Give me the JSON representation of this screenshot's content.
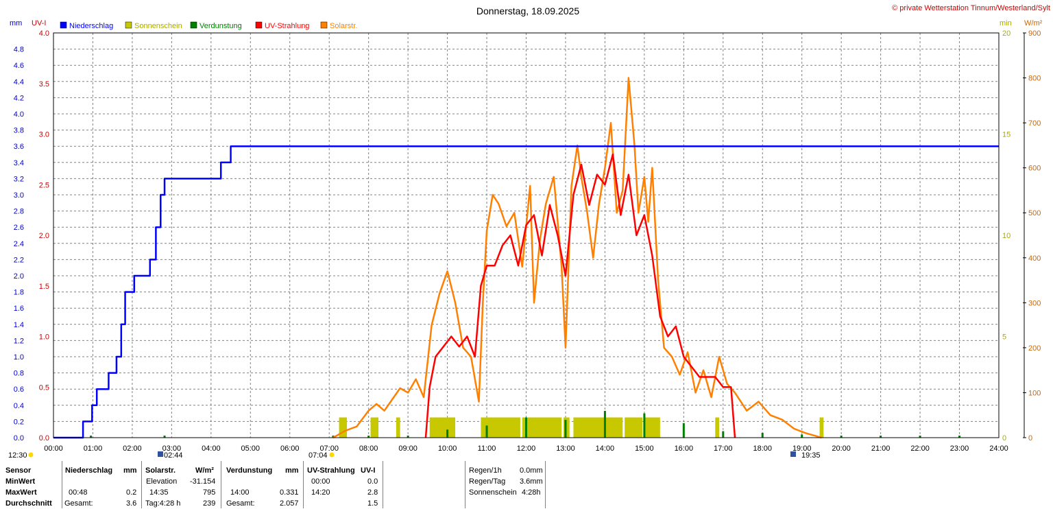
{
  "header": {
    "title": "Donnerstag, 18.09.2025",
    "credit": "© private Wetterstation Tinnum/Westerland/Sylt"
  },
  "axes": {
    "left_unit_mm": "mm",
    "left_unit_uv": "UV-I",
    "right_unit_min": "min",
    "right_unit_wm2": "W/m²",
    "x_ticks": [
      "00:00",
      "01:00",
      "02:00",
      "03:00",
      "04:00",
      "05:00",
      "06:00",
      "07:00",
      "08:00",
      "09:00",
      "10:00",
      "11:00",
      "12:00",
      "13:00",
      "14:00",
      "15:00",
      "16:00",
      "17:00",
      "18:00",
      "19:00",
      "20:00",
      "21:00",
      "22:00",
      "23:00",
      "24:00"
    ],
    "mm_ticks": [
      "0.0",
      "0.2",
      "0.4",
      "0.6",
      "0.8",
      "1.0",
      "1.2",
      "1.4",
      "1.6",
      "1.8",
      "2.0",
      "2.2",
      "2.4",
      "2.6",
      "2.8",
      "3.0",
      "3.2",
      "3.4",
      "3.6",
      "3.8",
      "4.0",
      "4.2",
      "4.4",
      "4.6",
      "4.8"
    ],
    "uv_ticks": [
      "0.0",
      "0.5",
      "1.0",
      "1.5",
      "2.0",
      "2.5",
      "3.0",
      "3.5",
      "4.0"
    ],
    "min_ticks": [
      "0",
      "5",
      "10",
      "15",
      "20"
    ],
    "wm2_ticks": [
      "0",
      "100",
      "200",
      "300",
      "400",
      "500",
      "600",
      "700",
      "800",
      "900"
    ]
  },
  "legend": [
    {
      "label": "Niederschlag",
      "color": "#0000ff"
    },
    {
      "label": "Sonnenschein",
      "color": "#c8c800"
    },
    {
      "label": "Verdunstung",
      "color": "#008000"
    },
    {
      "label": "UV-Strahlung",
      "color": "#ff0000"
    },
    {
      "label": "Solarstr.",
      "color": "#ff8000"
    }
  ],
  "markers": {
    "moon": "12:30",
    "moonrise": "02:44",
    "sunrise": "07:04",
    "sunset": "19:35"
  },
  "chart_data": {
    "type": "line",
    "xlim": [
      0,
      24
    ],
    "series": [
      {
        "name": "Niederschlag",
        "axis": "mm",
        "ylim": [
          0,
          5.0
        ],
        "step": true,
        "x": [
          0,
          0.75,
          0.98,
          1.1,
          1.4,
          1.6,
          1.72,
          1.82,
          2.05,
          2.45,
          2.6,
          2.72,
          2.82,
          4.25,
          4.5,
          24
        ],
        "y": [
          0,
          0.2,
          0.4,
          0.6,
          0.8,
          1.0,
          1.4,
          1.8,
          2.0,
          2.2,
          2.6,
          3.0,
          3.2,
          3.4,
          3.6,
          3.6
        ]
      },
      {
        "name": "UV-Strahlung",
        "axis": "uv",
        "ylim": [
          0,
          4.0
        ],
        "x": [
          9.45,
          9.55,
          9.7,
          9.9,
          10.1,
          10.3,
          10.5,
          10.7,
          10.85,
          11.0,
          11.2,
          11.4,
          11.6,
          11.8,
          12.0,
          12.2,
          12.4,
          12.6,
          12.8,
          13.0,
          13.2,
          13.4,
          13.6,
          13.8,
          14.0,
          14.2,
          14.4,
          14.6,
          14.8,
          15.0,
          15.2,
          15.4,
          15.6,
          15.8,
          16.0,
          16.2,
          16.4,
          16.6,
          16.8,
          17.0,
          17.2,
          17.3
        ],
        "y": [
          0,
          0.5,
          0.8,
          0.9,
          1.0,
          0.9,
          1.0,
          0.8,
          1.5,
          1.7,
          1.7,
          1.9,
          2.0,
          1.7,
          2.1,
          2.2,
          1.8,
          2.3,
          2.0,
          1.6,
          2.4,
          2.7,
          2.3,
          2.6,
          2.5,
          2.8,
          2.2,
          2.6,
          2.0,
          2.2,
          1.8,
          1.2,
          1.0,
          1.1,
          0.8,
          0.7,
          0.6,
          0.6,
          0.6,
          0.5,
          0.5,
          0
        ]
      },
      {
        "name": "Solarstr.",
        "axis": "wm2",
        "ylim": [
          0,
          900
        ],
        "x": [
          7.1,
          7.4,
          7.7,
          8.0,
          8.2,
          8.4,
          8.6,
          8.8,
          9.0,
          9.2,
          9.4,
          9.6,
          9.8,
          10.0,
          10.2,
          10.4,
          10.6,
          10.8,
          10.9,
          11.0,
          11.15,
          11.3,
          11.5,
          11.7,
          11.9,
          12.1,
          12.2,
          12.35,
          12.5,
          12.7,
          12.9,
          13.0,
          13.15,
          13.3,
          13.4,
          13.55,
          13.7,
          13.85,
          14.0,
          14.15,
          14.3,
          14.45,
          14.6,
          14.75,
          14.85,
          15.0,
          15.1,
          15.2,
          15.35,
          15.5,
          15.7,
          15.9,
          16.1,
          16.3,
          16.5,
          16.7,
          16.9,
          17.1,
          17.3,
          17.6,
          17.9,
          18.2,
          18.5,
          18.8,
          19.1,
          19.3,
          19.5
        ],
        "y": [
          0,
          15,
          25,
          60,
          75,
          60,
          85,
          110,
          100,
          130,
          90,
          250,
          320,
          370,
          300,
          200,
          180,
          80,
          300,
          460,
          540,
          520,
          470,
          500,
          380,
          560,
          300,
          440,
          520,
          580,
          380,
          200,
          560,
          650,
          580,
          500,
          400,
          520,
          600,
          700,
          500,
          550,
          800,
          650,
          500,
          580,
          480,
          600,
          350,
          200,
          180,
          140,
          190,
          100,
          150,
          90,
          180,
          120,
          100,
          60,
          80,
          50,
          40,
          20,
          10,
          5,
          0
        ]
      },
      {
        "name": "Sonnenschein",
        "axis": "min",
        "ylim": [
          0,
          20
        ],
        "bars": [
          [
            7.25,
            7.45,
            1
          ],
          [
            8.05,
            8.25,
            1
          ],
          [
            8.7,
            8.8,
            1
          ],
          [
            9.55,
            10.2,
            1
          ],
          [
            10.85,
            11.85,
            1
          ],
          [
            11.9,
            12.2,
            1
          ],
          [
            12.2,
            12.9,
            1
          ],
          [
            12.95,
            13.1,
            1
          ],
          [
            13.2,
            14.45,
            1
          ],
          [
            14.5,
            14.95,
            1
          ],
          [
            15.0,
            15.4,
            1
          ],
          [
            16.8,
            16.9,
            1
          ],
          [
            19.45,
            19.55,
            1
          ]
        ]
      },
      {
        "name": "Verdunstung",
        "axis": "mm",
        "ylim": [
          0,
          5.0
        ],
        "spikes": [
          [
            0.95,
            0.01
          ],
          [
            2.82,
            0.01
          ],
          [
            7.1,
            0.01
          ],
          [
            8.0,
            0.01
          ],
          [
            9.0,
            0.02
          ],
          [
            10.0,
            0.1
          ],
          [
            11.0,
            0.15
          ],
          [
            12.0,
            0.25
          ],
          [
            13.0,
            0.22
          ],
          [
            14.0,
            0.331
          ],
          [
            15.0,
            0.3
          ],
          [
            16.0,
            0.18
          ],
          [
            17.0,
            0.08
          ],
          [
            18.0,
            0.06
          ],
          [
            19.0,
            0.04
          ],
          [
            20.0,
            0.01
          ],
          [
            21.0,
            0.01
          ],
          [
            22.0,
            0.01
          ],
          [
            23.0,
            0.01
          ]
        ]
      }
    ]
  },
  "stats": {
    "sensor_label": "Sensor",
    "row_labels": [
      "MinWert",
      "MaxWert",
      "Durchschnitt"
    ],
    "rain": {
      "header": "Niederschlag",
      "unit": "mm",
      "max_time": "00:48",
      "max_value": "0.2",
      "total_label": "Gesamt:",
      "total": "3.6"
    },
    "solar": {
      "header": "Solarstr.",
      "unit": "W/m²",
      "min_label": "Elevation",
      "min_value": "-31.154",
      "max_time": "14:35",
      "max_value": "795",
      "avg_label": "Tag:4:28 h",
      "avg_value": "239"
    },
    "evap": {
      "header": "Verdunstung",
      "unit": "mm",
      "max_time": "14:00",
      "max_value": "0.331",
      "total_label": "Gesamt:",
      "total": "2.057"
    },
    "uv": {
      "header": "UV-Strahlung",
      "unit": "UV-I",
      "min_time": "00:00",
      "min_value": "0.0",
      "max_time": "14:20",
      "max_value": "2.8",
      "avg_value": "1.5"
    },
    "summary": [
      {
        "label": "Regen/1h",
        "value": "0.0mm"
      },
      {
        "label": "Regen/Tag",
        "value": "3.6mm"
      },
      {
        "label": "Sonnenschein",
        "value": "4:28h"
      }
    ]
  }
}
